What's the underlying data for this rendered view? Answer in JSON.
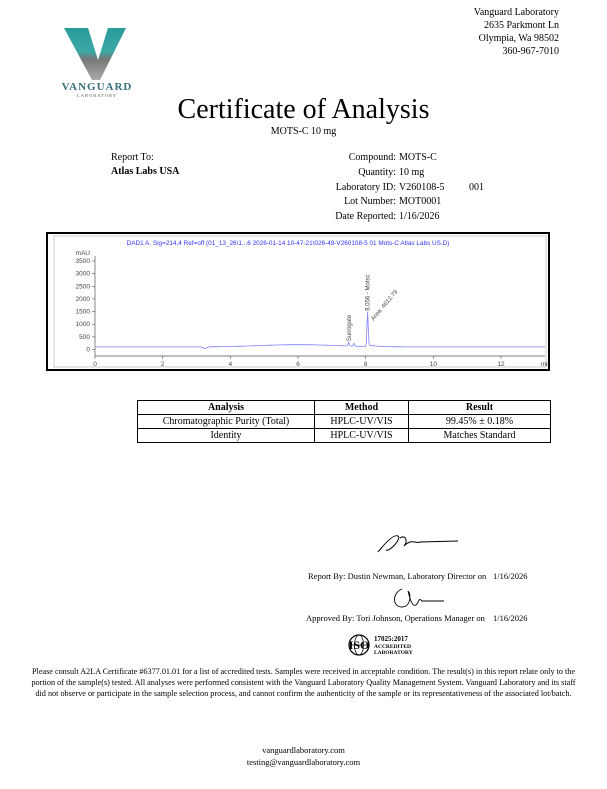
{
  "logo": {
    "name": "VANGUARD",
    "sub": "LABORATORY",
    "colors": {
      "teal": "#2a9a9a",
      "gray": "#7a7a7a"
    }
  },
  "lab_address": [
    "Vanguard Laboratory",
    "2635 Parkmont Ln",
    "Olympia, Wa 98502",
    "360-967-7010"
  ],
  "title": "Certificate of Analysis",
  "subtitle": "MOTS-C 10 mg",
  "report_to": {
    "label": "Report To:",
    "client": "Atlas Labs USA"
  },
  "sample_info": [
    {
      "label": "Compound:",
      "value": "MOTS-C"
    },
    {
      "label": "Quantity:",
      "value": "10 mg"
    },
    {
      "label": "Laboratory ID:",
      "value": "V260108-5",
      "extra": "001"
    },
    {
      "label": "Lot Number:",
      "value": "MOT0001"
    },
    {
      "label": "Date Reported:",
      "value": "1/16/2026"
    }
  ],
  "chart_data": {
    "type": "line",
    "title": "DAD1 A, Sig=214,4 Ref=off (01_13_26\\1...6 2026-01-14 10-47-21\\026-49-V260108-5 01 Mots-C Atlas Labs US.D)",
    "xlabel": "min",
    "ylabel": "mAU",
    "xlim": [
      0,
      13.3
    ],
    "ylim": [
      -100,
      3700
    ],
    "xticks": [
      0,
      2,
      4,
      6,
      8,
      10,
      12
    ],
    "yticks": [
      0,
      500,
      1000,
      1500,
      2000,
      2500,
      3000,
      3500
    ],
    "line_color": "#8080ff",
    "peaks": [
      {
        "rt": 7.5,
        "height": 150,
        "label": "Surrogate"
      },
      {
        "rt": 7.65,
        "height": 120,
        "label": ""
      },
      {
        "rt": 8.056,
        "height": 1350,
        "label": "8.056 - Motsc",
        "area_label": "Area: 4612.79"
      }
    ],
    "baseline": 100,
    "grid": false
  },
  "results_table": {
    "headers": [
      "Analysis",
      "Method",
      "Result"
    ],
    "rows": [
      [
        "Chromatographic Purity (Total)",
        "HPLC-UV/VIS",
        "99.45% ± 0.18%"
      ],
      [
        "Identity",
        "HPLC-UV/VIS",
        "Matches Standard"
      ]
    ]
  },
  "signatures": {
    "report_by": "Report By: Dustin Newman, Laboratory Director on",
    "report_date": "1/16/2026",
    "approved_by": "Approved By: Tori Johnson, Operations Manager on",
    "approved_date": "1/16/2026"
  },
  "iso_badge": {
    "mark": "ISO",
    "line1": "17025:2017",
    "line2": "ACCREDITED",
    "line3": "LABORATORY"
  },
  "disclaimer": "Please consult A2LA Certificate #6377.01.01 for a list of accredited tests. Samples were received in acceptable condition. The result(s) in this report relate only to the portion of the sample(s) tested. All analyses were performed consistent with the Vanguard Laboratory Quality Management System. Vanguard Laboratory and its staff did not observe or participate in the sample selection process, and cannot confirm the authenticity of the sample or its representativeness of the associated lot/batch.",
  "footer": {
    "website": "vanguardlaboratory.com",
    "email": "testing@vanguardlaboratory.com"
  }
}
